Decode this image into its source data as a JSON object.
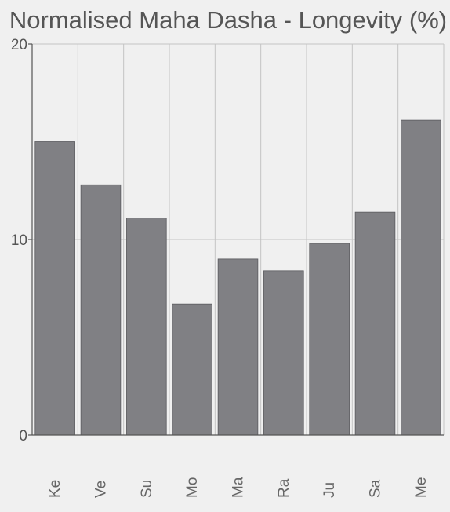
{
  "chart_data": {
    "type": "bar",
    "title": "Normalised Maha Dasha - Longevity (%)",
    "xlabel": "",
    "ylabel": "",
    "categories": [
      "Ke",
      "Ve",
      "Su",
      "Mo",
      "Ma",
      "Ra",
      "Ju",
      "Sa",
      "Me"
    ],
    "values": [
      15.0,
      12.8,
      11.1,
      6.7,
      9.0,
      8.4,
      9.8,
      11.4,
      16.1
    ],
    "ylim": [
      0,
      20
    ],
    "yticks": [
      "0",
      "10",
      "20"
    ],
    "grid": true,
    "bar_color": "#808084",
    "grid_color": "#c4c4c4",
    "background_color": "#f0f0f0"
  }
}
